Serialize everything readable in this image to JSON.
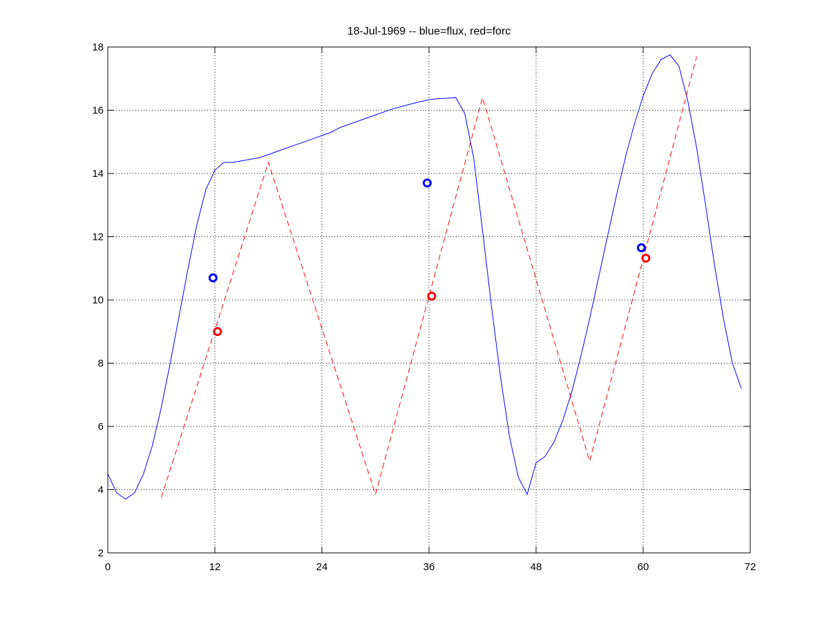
{
  "chart_data": {
    "type": "line",
    "title": "18-Jul-1969 -- blue=flux, red=forc",
    "xlabel": "",
    "ylabel": "",
    "xlim": [
      0,
      72
    ],
    "ylim": [
      2,
      18
    ],
    "xticks": [
      0,
      12,
      24,
      36,
      48,
      60,
      72
    ],
    "yticks": [
      2,
      4,
      6,
      8,
      10,
      12,
      14,
      16,
      18
    ],
    "grid": true,
    "colors": {
      "blue": "#0000ff",
      "red": "#ff0000"
    },
    "series": [
      {
        "style": "solid",
        "color": "#0000ff",
        "x": [
          0,
          1,
          2,
          3,
          4,
          5,
          6,
          7,
          8,
          9,
          10,
          11,
          12,
          13,
          14,
          15,
          16,
          17,
          18,
          19,
          20,
          21,
          22,
          23,
          24,
          25,
          26,
          27,
          28,
          29,
          30,
          31,
          32,
          33,
          34,
          35,
          36,
          37,
          38,
          39,
          40,
          41,
          42,
          43,
          44,
          45,
          46,
          47,
          48,
          49,
          50,
          51,
          52,
          53,
          54,
          55,
          56,
          57,
          58,
          59,
          60,
          61,
          62,
          63,
          64,
          65,
          66,
          67,
          68,
          69,
          70,
          71
        ],
        "y": [
          4.5,
          3.9,
          3.7,
          3.9,
          4.5,
          5.4,
          6.6,
          8.0,
          9.5,
          11.0,
          12.4,
          13.5,
          14.1,
          14.35,
          14.35,
          14.4,
          14.45,
          14.5,
          14.6,
          14.7,
          14.8,
          14.9,
          15.0,
          15.1,
          15.2,
          15.3,
          15.45,
          15.55,
          15.65,
          15.75,
          15.85,
          15.95,
          16.05,
          16.12,
          16.2,
          16.27,
          16.33,
          16.37,
          16.38,
          16.4,
          15.9,
          14.5,
          12.2,
          9.8,
          7.6,
          5.7,
          4.4,
          3.85,
          4.85,
          5.05,
          5.5,
          6.2,
          7.1,
          8.2,
          9.4,
          10.7,
          12.0,
          13.3,
          14.5,
          15.55,
          16.45,
          17.15,
          17.6,
          17.75,
          17.4,
          16.3,
          14.8,
          13.0,
          11.1,
          9.4,
          8.0,
          7.2
        ]
      },
      {
        "style": "dashed",
        "color": "#ff0000",
        "x": [
          6,
          18,
          30,
          42,
          54,
          66
        ],
        "y": [
          3.75,
          14.35,
          3.85,
          16.4,
          4.9,
          17.7
        ]
      }
    ],
    "markers": [
      {
        "x": 11.8,
        "y": 10.7,
        "color": "#0000ff"
      },
      {
        "x": 12.3,
        "y": 9.0,
        "color": "#ff0000"
      },
      {
        "x": 35.8,
        "y": 13.7,
        "color": "#0000ff"
      },
      {
        "x": 36.3,
        "y": 10.12,
        "color": "#ff0000"
      },
      {
        "x": 59.8,
        "y": 11.65,
        "color": "#0000ff"
      },
      {
        "x": 60.3,
        "y": 11.32,
        "color": "#ff0000"
      }
    ]
  }
}
